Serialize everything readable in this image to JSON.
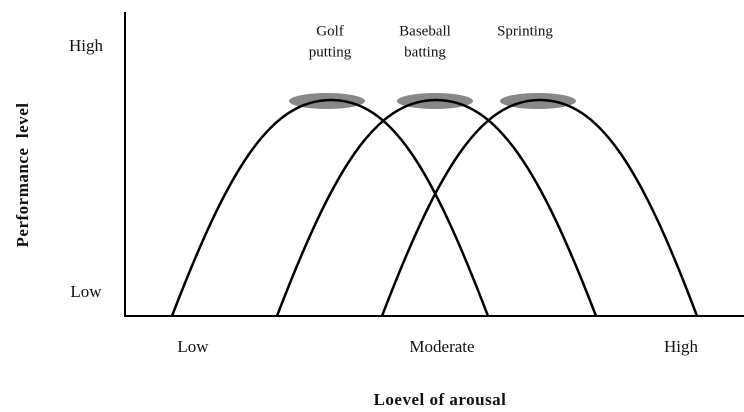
{
  "y_axis": {
    "title": "Performance  level",
    "ticks": [
      "High",
      "Low"
    ]
  },
  "x_axis": {
    "title": "Loevel of arousal",
    "ticks": [
      "Low",
      "Moderate",
      "High"
    ]
  },
  "curves": [
    {
      "label": [
        "Golf",
        "putting"
      ]
    },
    {
      "label": [
        "Baseball",
        "batting"
      ]
    },
    {
      "label": [
        "Sprinting"
      ]
    }
  ]
}
